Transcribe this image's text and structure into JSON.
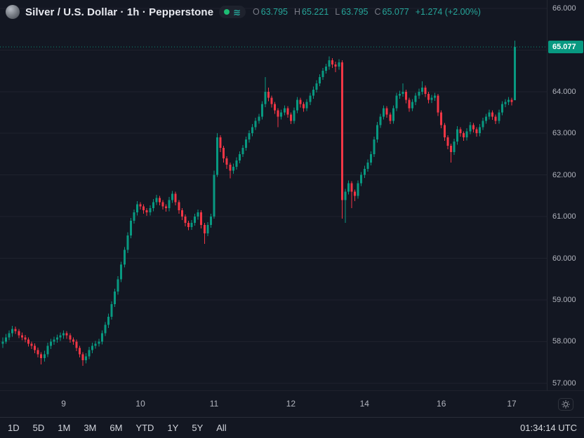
{
  "header": {
    "title": "Silver / U.S. Dollar · 1h · Pepperstone",
    "ohlc": {
      "o_label": "O",
      "o": "63.795",
      "h_label": "H",
      "h": "65.221",
      "l_label": "L",
      "l": "63.795",
      "c_label": "C",
      "c": "65.077",
      "change": "+1.274 (+2.00%)"
    }
  },
  "toolbar": {
    "ranges": [
      "1D",
      "5D",
      "1M",
      "3M",
      "6M",
      "YTD",
      "1Y",
      "5Y",
      "All"
    ],
    "clock": "01:34:14 UTC"
  },
  "chart_data": {
    "type": "candlestick",
    "title": "Silver / U.S. Dollar",
    "interval": "1h",
    "provider": "Pepperstone",
    "last_price": 65.077,
    "last_price_text": "65.077",
    "last_candle_ohlc": [
      63.795,
      65.221,
      63.795,
      65.077
    ],
    "colors": {
      "up": "#089981",
      "down": "#f23645",
      "grid": "rgba(255,255,255,0.05)",
      "accent_text": "#26a69a"
    },
    "y_axis": {
      "top": 66.2,
      "bottom": 56.83,
      "gridlines": [
        57,
        58,
        59,
        60,
        61,
        62,
        63,
        64,
        65,
        66
      ],
      "labels": [
        {
          "price": 66,
          "text": "66.000"
        },
        {
          "price": 64,
          "text": "64.000"
        },
        {
          "price": 63,
          "text": "63.000"
        },
        {
          "price": 62,
          "text": "62.000"
        },
        {
          "price": 61,
          "text": "61.000"
        },
        {
          "price": 60,
          "text": "60.000"
        },
        {
          "price": 59,
          "text": "59.000"
        },
        {
          "price": 58,
          "text": "58.000"
        },
        {
          "price": 57,
          "text": "57.000"
        }
      ]
    },
    "x_axis": {
      "offset": 4,
      "step": 4.56,
      "ticks": [
        {
          "i": 19,
          "label": "9"
        },
        {
          "i": 43,
          "label": "10"
        },
        {
          "i": 66,
          "label": "11"
        },
        {
          "i": 90,
          "label": "12"
        },
        {
          "i": 113,
          "label": "14"
        },
        {
          "i": 137,
          "label": "16"
        },
        {
          "i": 159,
          "label": "17"
        }
      ]
    },
    "candles": [
      [
        57.95,
        58.1,
        57.85,
        58.0
      ],
      [
        58.0,
        58.18,
        57.95,
        58.1
      ],
      [
        58.1,
        58.27,
        58.03,
        58.2
      ],
      [
        58.2,
        58.38,
        58.12,
        58.3
      ],
      [
        58.3,
        58.36,
        58.18,
        58.25
      ],
      [
        58.25,
        58.3,
        58.08,
        58.15
      ],
      [
        58.15,
        58.22,
        58.03,
        58.1
      ],
      [
        58.1,
        58.16,
        57.98,
        58.05
      ],
      [
        58.05,
        58.1,
        57.88,
        57.95
      ],
      [
        57.95,
        58.0,
        57.82,
        57.9
      ],
      [
        57.9,
        57.96,
        57.72,
        57.8
      ],
      [
        57.8,
        57.86,
        57.62,
        57.7
      ],
      [
        57.7,
        57.75,
        57.45,
        57.6
      ],
      [
        57.6,
        57.78,
        57.52,
        57.7
      ],
      [
        57.7,
        57.97,
        57.63,
        57.9
      ],
      [
        57.9,
        58.07,
        57.82,
        58.0
      ],
      [
        58.0,
        58.12,
        57.92,
        58.05
      ],
      [
        58.05,
        58.17,
        57.97,
        58.1
      ],
      [
        58.1,
        58.22,
        58.02,
        58.15
      ],
      [
        58.15,
        58.27,
        58.07,
        58.2
      ],
      [
        58.2,
        58.25,
        58.07,
        58.15
      ],
      [
        58.15,
        58.2,
        57.97,
        58.05
      ],
      [
        58.05,
        58.1,
        57.92,
        58.0
      ],
      [
        58.0,
        58.05,
        57.77,
        57.85
      ],
      [
        57.85,
        57.9,
        57.62,
        57.7
      ],
      [
        57.7,
        57.75,
        57.42,
        57.55
      ],
      [
        57.55,
        57.72,
        57.48,
        57.65
      ],
      [
        57.65,
        57.87,
        57.58,
        57.8
      ],
      [
        57.8,
        57.97,
        57.72,
        57.9
      ],
      [
        57.9,
        58.02,
        57.83,
        57.95
      ],
      [
        57.95,
        58.07,
        57.88,
        58.0
      ],
      [
        58.0,
        58.27,
        57.93,
        58.2
      ],
      [
        58.2,
        58.47,
        58.13,
        58.4
      ],
      [
        58.4,
        58.67,
        58.33,
        58.6
      ],
      [
        58.6,
        58.97,
        58.53,
        58.9
      ],
      [
        58.9,
        59.27,
        58.83,
        59.2
      ],
      [
        59.2,
        59.57,
        59.13,
        59.5
      ],
      [
        59.5,
        59.92,
        59.43,
        59.85
      ],
      [
        59.85,
        60.27,
        59.78,
        60.2
      ],
      [
        60.2,
        60.62,
        60.13,
        60.55
      ],
      [
        60.55,
        60.97,
        60.48,
        60.9
      ],
      [
        60.9,
        61.17,
        60.83,
        61.1
      ],
      [
        61.1,
        61.37,
        61.03,
        61.3
      ],
      [
        61.3,
        61.35,
        61.17,
        61.25
      ],
      [
        61.25,
        61.3,
        61.07,
        61.15
      ],
      [
        61.15,
        61.2,
        61.02,
        61.1
      ],
      [
        61.1,
        61.27,
        61.03,
        61.2
      ],
      [
        61.2,
        61.42,
        61.13,
        61.35
      ],
      [
        61.35,
        61.52,
        61.28,
        61.45
      ],
      [
        61.45,
        61.5,
        61.27,
        61.35
      ],
      [
        61.35,
        61.4,
        61.17,
        61.25
      ],
      [
        61.25,
        61.3,
        61.12,
        61.2
      ],
      [
        61.2,
        61.47,
        61.13,
        61.4
      ],
      [
        61.4,
        61.62,
        61.33,
        61.55
      ],
      [
        61.55,
        61.6,
        61.27,
        61.35
      ],
      [
        61.35,
        61.4,
        61.07,
        61.15
      ],
      [
        61.15,
        61.2,
        60.92,
        61.0
      ],
      [
        61.0,
        61.05,
        60.77,
        60.85
      ],
      [
        60.85,
        60.9,
        60.67,
        60.75
      ],
      [
        60.75,
        60.92,
        60.68,
        60.85
      ],
      [
        60.85,
        61.07,
        60.78,
        61.0
      ],
      [
        61.0,
        61.17,
        60.93,
        61.1
      ],
      [
        61.1,
        61.15,
        60.72,
        60.8
      ],
      [
        60.8,
        60.85,
        60.35,
        60.6
      ],
      [
        60.6,
        60.87,
        60.53,
        60.8
      ],
      [
        60.8,
        61.07,
        60.73,
        61.0
      ],
      [
        61.0,
        62.1,
        60.95,
        62.0
      ],
      [
        62.0,
        63.0,
        61.95,
        62.9
      ],
      [
        62.9,
        62.95,
        62.55,
        62.65
      ],
      [
        62.65,
        62.7,
        62.3,
        62.4
      ],
      [
        62.4,
        62.45,
        62.15,
        62.25
      ],
      [
        62.25,
        62.3,
        61.92,
        62.1
      ],
      [
        62.1,
        62.27,
        62.03,
        62.2
      ],
      [
        62.2,
        62.42,
        62.13,
        62.35
      ],
      [
        62.35,
        62.57,
        62.28,
        62.5
      ],
      [
        62.5,
        62.72,
        62.43,
        62.65
      ],
      [
        62.65,
        62.92,
        62.58,
        62.85
      ],
      [
        62.85,
        63.07,
        62.78,
        63.0
      ],
      [
        63.0,
        63.22,
        62.93,
        63.15
      ],
      [
        63.15,
        63.37,
        63.08,
        63.3
      ],
      [
        63.3,
        63.47,
        63.23,
        63.4
      ],
      [
        63.4,
        63.77,
        63.33,
        63.7
      ],
      [
        63.7,
        64.35,
        63.63,
        64.0
      ],
      [
        64.0,
        64.1,
        63.77,
        63.85
      ],
      [
        63.85,
        63.9,
        63.62,
        63.7
      ],
      [
        63.7,
        63.75,
        63.47,
        63.55
      ],
      [
        63.55,
        63.6,
        63.15,
        63.4
      ],
      [
        63.4,
        63.57,
        63.33,
        63.5
      ],
      [
        63.5,
        63.67,
        63.43,
        63.6
      ],
      [
        63.6,
        63.65,
        63.37,
        63.45
      ],
      [
        63.45,
        63.5,
        63.22,
        63.3
      ],
      [
        63.3,
        63.62,
        63.23,
        63.55
      ],
      [
        63.55,
        63.87,
        63.48,
        63.8
      ],
      [
        63.8,
        63.85,
        63.62,
        63.7
      ],
      [
        63.7,
        63.75,
        63.52,
        63.6
      ],
      [
        63.6,
        63.82,
        63.53,
        63.75
      ],
      [
        63.75,
        63.97,
        63.68,
        63.9
      ],
      [
        63.9,
        64.12,
        63.83,
        64.05
      ],
      [
        64.05,
        64.27,
        63.98,
        64.2
      ],
      [
        64.2,
        64.42,
        64.13,
        64.35
      ],
      [
        64.35,
        64.57,
        64.28,
        64.5
      ],
      [
        64.5,
        64.67,
        64.43,
        64.6
      ],
      [
        64.6,
        64.85,
        64.53,
        64.75
      ],
      [
        64.75,
        64.8,
        64.57,
        64.65
      ],
      [
        64.65,
        64.72,
        64.47,
        64.6
      ],
      [
        64.6,
        64.78,
        64.53,
        64.7
      ],
      [
        64.7,
        64.75,
        60.95,
        61.4
      ],
      [
        61.4,
        61.67,
        60.85,
        61.6
      ],
      [
        61.6,
        61.87,
        61.53,
        61.8
      ],
      [
        61.8,
        61.85,
        61.2,
        61.6
      ],
      [
        61.6,
        61.65,
        61.37,
        61.5
      ],
      [
        61.5,
        61.87,
        61.43,
        61.8
      ],
      [
        61.8,
        62.07,
        61.73,
        62.0
      ],
      [
        62.0,
        62.22,
        61.93,
        62.15
      ],
      [
        62.15,
        62.37,
        62.08,
        62.3
      ],
      [
        62.3,
        62.57,
        62.23,
        62.5
      ],
      [
        62.5,
        62.92,
        62.43,
        62.85
      ],
      [
        62.85,
        63.27,
        62.78,
        63.2
      ],
      [
        63.2,
        63.47,
        63.13,
        63.4
      ],
      [
        63.4,
        63.67,
        63.33,
        63.6
      ],
      [
        63.6,
        63.65,
        63.37,
        63.45
      ],
      [
        63.45,
        63.5,
        63.22,
        63.3
      ],
      [
        63.3,
        63.67,
        63.23,
        63.6
      ],
      [
        63.6,
        63.97,
        63.53,
        63.9
      ],
      [
        63.9,
        64.02,
        63.83,
        63.95
      ],
      [
        63.95,
        64.2,
        63.88,
        64.0
      ],
      [
        64.0,
        64.05,
        63.72,
        63.8
      ],
      [
        63.8,
        63.85,
        63.52,
        63.6
      ],
      [
        63.6,
        63.82,
        63.53,
        63.75
      ],
      [
        63.75,
        63.97,
        63.68,
        63.9
      ],
      [
        63.9,
        64.07,
        63.83,
        64.0
      ],
      [
        64.0,
        64.25,
        63.93,
        64.1
      ],
      [
        64.1,
        64.15,
        63.87,
        63.95
      ],
      [
        63.95,
        64.0,
        63.72,
        63.8
      ],
      [
        63.8,
        63.92,
        63.73,
        63.85
      ],
      [
        63.85,
        63.97,
        63.78,
        63.9
      ],
      [
        63.9,
        63.95,
        63.42,
        63.5
      ],
      [
        63.5,
        63.55,
        63.12,
        63.2
      ],
      [
        63.2,
        63.25,
        62.82,
        62.9
      ],
      [
        62.9,
        62.95,
        62.62,
        62.7
      ],
      [
        62.7,
        62.75,
        62.3,
        62.55
      ],
      [
        62.55,
        62.87,
        62.48,
        62.8
      ],
      [
        62.8,
        63.17,
        62.73,
        63.1
      ],
      [
        63.1,
        63.15,
        62.92,
        63.0
      ],
      [
        63.0,
        63.05,
        62.82,
        62.9
      ],
      [
        62.9,
        63.12,
        62.83,
        63.05
      ],
      [
        63.05,
        63.27,
        62.98,
        63.2
      ],
      [
        63.2,
        63.25,
        63.02,
        63.1
      ],
      [
        63.1,
        63.15,
        62.92,
        63.0
      ],
      [
        63.0,
        63.22,
        62.93,
        63.15
      ],
      [
        63.15,
        63.37,
        63.08,
        63.3
      ],
      [
        63.3,
        63.47,
        63.23,
        63.4
      ],
      [
        63.4,
        63.57,
        63.33,
        63.5
      ],
      [
        63.5,
        63.55,
        63.32,
        63.4
      ],
      [
        63.4,
        63.45,
        63.22,
        63.3
      ],
      [
        63.3,
        63.57,
        63.23,
        63.5
      ],
      [
        63.5,
        63.77,
        63.43,
        63.7
      ],
      [
        63.7,
        63.82,
        63.63,
        63.75
      ],
      [
        63.75,
        63.87,
        63.68,
        63.8
      ],
      [
        63.8,
        63.85,
        63.67,
        63.75
      ],
      [
        63.795,
        65.221,
        63.795,
        65.077
      ]
    ]
  }
}
